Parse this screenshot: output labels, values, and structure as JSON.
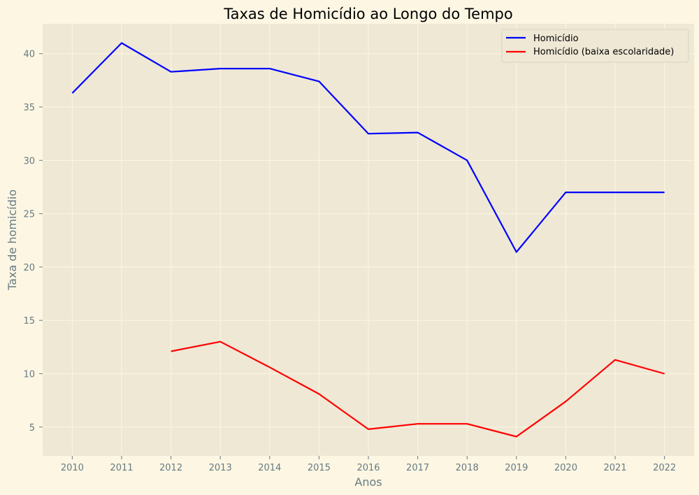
{
  "colors": {
    "figure_bg": "#fdf6e3",
    "plot_bg": "#eee8d5",
    "grid": "#fdf6e3",
    "text": "#657b83"
  },
  "chart_data": {
    "type": "line",
    "title": "Taxas de Homicídio ao Longo do Tempo",
    "xlabel": "Anos",
    "ylabel": "Taxa de homicídio",
    "x": [
      2010,
      2011,
      2012,
      2013,
      2014,
      2015,
      2016,
      2017,
      2018,
      2019,
      2020,
      2021,
      2022
    ],
    "xlim": [
      2009.4,
      2022.6
    ],
    "ylim": [
      2.3,
      42.8
    ],
    "yticks": [
      5,
      10,
      15,
      20,
      25,
      30,
      35,
      40
    ],
    "grid": true,
    "legend_position": "top-right",
    "series": [
      {
        "name": "Homicídio",
        "color": "#0000ff",
        "values": [
          36.3,
          41.0,
          38.3,
          38.6,
          38.6,
          37.4,
          32.5,
          32.6,
          30.0,
          21.4,
          27.0,
          27.0,
          27.0
        ]
      },
      {
        "name": "Homicídio (baixa escolaridade)",
        "color": "#ff0000",
        "values": [
          null,
          null,
          12.1,
          13.0,
          10.6,
          8.1,
          4.8,
          5.3,
          5.3,
          4.1,
          7.4,
          11.3,
          10.0
        ]
      }
    ]
  }
}
